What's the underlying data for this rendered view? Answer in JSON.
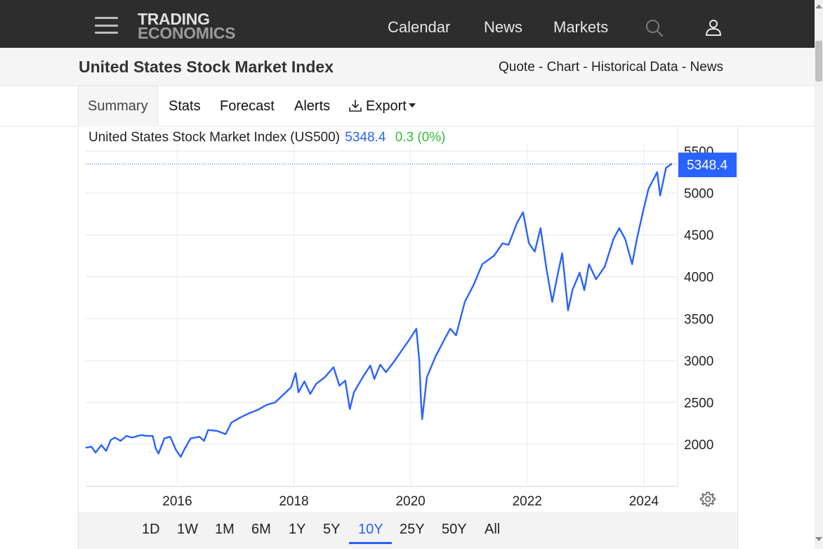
{
  "nav": {
    "logo_line1": "TRADING",
    "logo_line2": "ECONOMICS",
    "links": [
      "Calendar",
      "News",
      "Markets"
    ]
  },
  "header": {
    "title": "United States Stock Market Index",
    "crumbs": [
      "Quote",
      "Chart",
      "Historical Data",
      "News"
    ],
    "separator": "-"
  },
  "tabs": [
    "Summary",
    "Stats",
    "Forecast",
    "Alerts",
    "Export"
  ],
  "quote": {
    "label": "United States Stock Market Index (US500)",
    "price": "5348.4",
    "change": "0.3 (0%)"
  },
  "ranges": [
    "1D",
    "1W",
    "1M",
    "6M",
    "1Y",
    "5Y",
    "10Y",
    "25Y",
    "50Y",
    "All"
  ],
  "active_range": "10Y",
  "colors": {
    "line": "#2962ff",
    "up": "#2ebd3b",
    "nav_bg": "#2d2d2d"
  },
  "chart_data": {
    "type": "line",
    "title": "",
    "xlabel": "",
    "ylabel": "",
    "x_ticks": [
      "2016",
      "2018",
      "2020",
      "2022",
      "2024"
    ],
    "y_ticks": [
      2000,
      2500,
      3000,
      3500,
      4000,
      4500,
      5000,
      5500
    ],
    "ylim": [
      1500,
      5550
    ],
    "xlim": [
      2014.45,
      2024.6
    ],
    "last_value": 5348.4,
    "last_label": "5348.4",
    "grid": true,
    "series": [
      {
        "name": "",
        "points": [
          [
            2014.45,
            1960
          ],
          [
            2014.55,
            1970
          ],
          [
            2014.62,
            1900
          ],
          [
            2014.72,
            1990
          ],
          [
            2014.8,
            1920
          ],
          [
            2014.88,
            2050
          ],
          [
            2014.95,
            2080
          ],
          [
            2015.05,
            2040
          ],
          [
            2015.15,
            2100
          ],
          [
            2015.25,
            2080
          ],
          [
            2015.4,
            2110
          ],
          [
            2015.5,
            2100
          ],
          [
            2015.6,
            2100
          ],
          [
            2015.65,
            1950
          ],
          [
            2015.7,
            1890
          ],
          [
            2015.8,
            2070
          ],
          [
            2015.9,
            2090
          ],
          [
            2016.0,
            1930
          ],
          [
            2016.08,
            1850
          ],
          [
            2016.15,
            1950
          ],
          [
            2016.25,
            2070
          ],
          [
            2016.4,
            2090
          ],
          [
            2016.48,
            2040
          ],
          [
            2016.55,
            2170
          ],
          [
            2016.7,
            2160
          ],
          [
            2016.85,
            2120
          ],
          [
            2016.95,
            2260
          ],
          [
            2017.1,
            2320
          ],
          [
            2017.25,
            2370
          ],
          [
            2017.4,
            2410
          ],
          [
            2017.55,
            2470
          ],
          [
            2017.7,
            2500
          ],
          [
            2017.85,
            2600
          ],
          [
            2017.97,
            2680
          ],
          [
            2018.05,
            2850
          ],
          [
            2018.1,
            2620
          ],
          [
            2018.2,
            2750
          ],
          [
            2018.3,
            2600
          ],
          [
            2018.4,
            2720
          ],
          [
            2018.55,
            2800
          ],
          [
            2018.7,
            2920
          ],
          [
            2018.8,
            2700
          ],
          [
            2018.9,
            2760
          ],
          [
            2018.98,
            2420
          ],
          [
            2019.05,
            2620
          ],
          [
            2019.2,
            2800
          ],
          [
            2019.33,
            2940
          ],
          [
            2019.4,
            2780
          ],
          [
            2019.5,
            2950
          ],
          [
            2019.6,
            2860
          ],
          [
            2019.75,
            3000
          ],
          [
            2019.9,
            3150
          ],
          [
            2020.0,
            3250
          ],
          [
            2020.12,
            3380
          ],
          [
            2020.17,
            3000
          ],
          [
            2020.2,
            2500
          ],
          [
            2020.22,
            2300
          ],
          [
            2020.3,
            2800
          ],
          [
            2020.45,
            3050
          ],
          [
            2020.6,
            3250
          ],
          [
            2020.7,
            3380
          ],
          [
            2020.8,
            3300
          ],
          [
            2020.95,
            3700
          ],
          [
            2021.1,
            3900
          ],
          [
            2021.25,
            4150
          ],
          [
            2021.45,
            4250
          ],
          [
            2021.6,
            4400
          ],
          [
            2021.7,
            4380
          ],
          [
            2021.85,
            4650
          ],
          [
            2021.95,
            4770
          ],
          [
            2022.05,
            4400
          ],
          [
            2022.15,
            4300
          ],
          [
            2022.25,
            4580
          ],
          [
            2022.35,
            4100
          ],
          [
            2022.45,
            3700
          ],
          [
            2022.55,
            4050
          ],
          [
            2022.62,
            4280
          ],
          [
            2022.72,
            3600
          ],
          [
            2022.8,
            3850
          ],
          [
            2022.92,
            4050
          ],
          [
            2023.0,
            3840
          ],
          [
            2023.08,
            4150
          ],
          [
            2023.2,
            3970
          ],
          [
            2023.35,
            4120
          ],
          [
            2023.5,
            4450
          ],
          [
            2023.6,
            4580
          ],
          [
            2023.7,
            4450
          ],
          [
            2023.82,
            4150
          ],
          [
            2023.9,
            4450
          ],
          [
            2024.0,
            4760
          ],
          [
            2024.1,
            5050
          ],
          [
            2024.25,
            5250
          ],
          [
            2024.3,
            4970
          ],
          [
            2024.4,
            5300
          ],
          [
            2024.5,
            5350
          ]
        ]
      }
    ]
  }
}
